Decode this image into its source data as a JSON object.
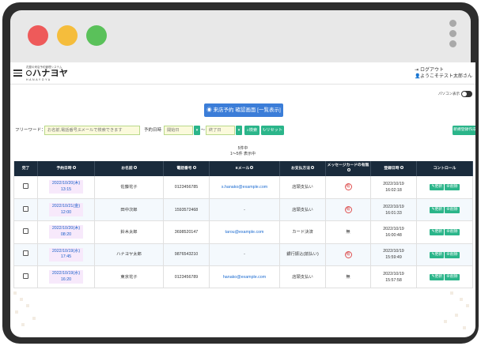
{
  "header": {
    "logo_tagline": "花屋の来店予約管理システム",
    "logo_main": "ハナヨヤ",
    "logo_sub": "HANAYOYA",
    "logout": "ログアウト",
    "welcome": "ようこそテスト太郎さん"
  },
  "toggle_label": "パソコン表示",
  "page_title": "来店予約 確認画面 [一覧表示]",
  "search": {
    "label": "フリーワード：",
    "placeholder": "お名前,電話番号,Eメールで検索できます",
    "date_label": "予約日時",
    "start_placeholder": "開始日",
    "end_placeholder": "終了日",
    "tilde": "〜",
    "search_btn": "検索",
    "reset_btn": "リセット",
    "new_btn": "新規登録作成"
  },
  "count": {
    "total": "5件中",
    "range": "1〜5件 表示中"
  },
  "table": {
    "headers": [
      "完了",
      "予約日時",
      "お名前",
      "電話番号",
      "Eメール",
      "お支払方法",
      "メッセージカードの有無",
      "登録日時",
      "コントロール"
    ],
    "rows": [
      {
        "date": "2022/10/20(木)",
        "time": "13:15",
        "name": "佐藤花子",
        "phone": "0123456785",
        "email": "s.hanako@example.com",
        "payment": "店頭支払い",
        "card": "有",
        "updated_date": "2022/10/19",
        "updated_time": "16:02:18"
      },
      {
        "date": "2022/10/21(金)",
        "time": "12:00",
        "name": "田中次郎",
        "phone": "1593572468",
        "email": "-",
        "payment": "店頭支払い",
        "card": "有",
        "updated_date": "2022/10/19",
        "updated_time": "16:01:33"
      },
      {
        "date": "2022/10/20(木)",
        "time": "08:20",
        "name": "鈴木太郎",
        "phone": "3698520147",
        "email": "tarou@example.com",
        "payment": "カード決済",
        "card": "無",
        "updated_date": "2022/10/19",
        "updated_time": "16:00:48"
      },
      {
        "date": "2022/10/19(水)",
        "time": "17:45",
        "name": "ハナヨヤ太郎",
        "phone": "9876543210",
        "email": "-",
        "payment": "銀行振込(前払い)",
        "card": "有",
        "updated_date": "2022/10/19",
        "updated_time": "15:59:49"
      },
      {
        "date": "2022/10/19(水)",
        "time": "16:20",
        "name": "東京花子",
        "phone": "0123456789",
        "email": "hanako@example.com",
        "payment": "店頭支払い",
        "card": "無",
        "updated_date": "2022/10/19",
        "updated_time": "15:57:58"
      }
    ],
    "edit_label": "更新",
    "delete_label": "削除"
  }
}
